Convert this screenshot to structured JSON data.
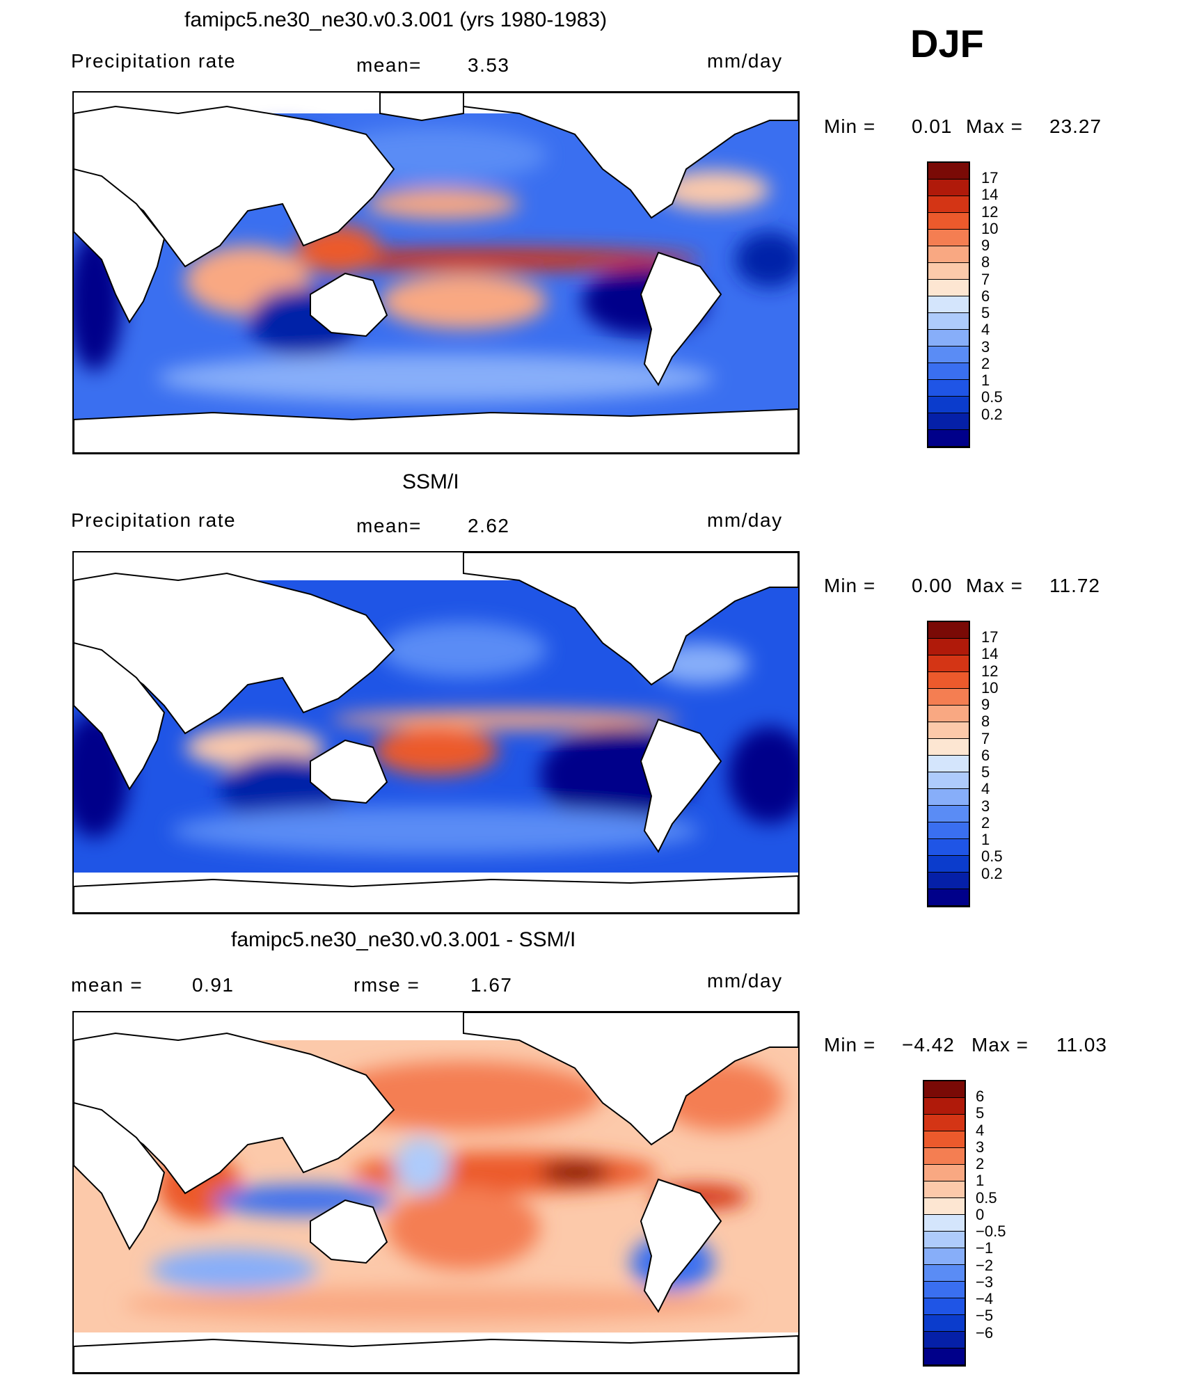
{
  "season": "DJF",
  "panels": [
    {
      "title": "famipc5.ne30_ne30.v0.3.001 (yrs 1980-1983)",
      "left_label": "Precipitation rate",
      "mid_label": "mean=",
      "mid_value": "3.53",
      "units": "mm/day",
      "min_label": "Min =",
      "min_value": "0.01",
      "max_label": "Max =",
      "max_value": "23.27"
    },
    {
      "title": "SSM/I",
      "left_label": "Precipitation rate",
      "mid_label": "mean=",
      "mid_value": "2.62",
      "units": "mm/day",
      "min_label": "Min =",
      "min_value": "0.00",
      "max_label": "Max =",
      "max_value": "11.72"
    },
    {
      "title": "famipc5.ne30_ne30.v0.3.001 - SSM/I",
      "left_label": "mean =",
      "left_value": "0.91",
      "mid_label": "rmse =",
      "mid_value": "1.67",
      "units": "mm/day",
      "min_label": "Min =",
      "min_value": "−4.42",
      "max_label": "Max =",
      "max_value": "11.03"
    }
  ],
  "chart_data": [
    {
      "type": "heatmap",
      "title": "famipc5.ne30_ne30.v0.3.001 (yrs 1980-1983)",
      "variable": "Precipitation rate",
      "units": "mm/day",
      "mean": 3.53,
      "min": 0.01,
      "max": 23.27,
      "contour_levels": [
        0.2,
        0.5,
        1,
        2,
        3,
        4,
        5,
        6,
        7,
        8,
        9,
        10,
        12,
        14,
        17
      ],
      "colorbar_colors": [
        "#00008a",
        "#0520a8",
        "#0b3ccc",
        "#1f55e6",
        "#3a6ff0",
        "#5a8cf5",
        "#87aef9",
        "#aecbfb",
        "#d4e5fc",
        "#fde6d2",
        "#fcc9aa",
        "#f9a882",
        "#f47e52",
        "#ec5a2c",
        "#d43515",
        "#b01a0a",
        "#7a0a06"
      ]
    },
    {
      "type": "heatmap",
      "title": "SSM/I",
      "variable": "Precipitation rate",
      "units": "mm/day",
      "mean": 2.62,
      "min": 0.0,
      "max": 11.72,
      "contour_levels": [
        0.2,
        0.5,
        1,
        2,
        3,
        4,
        5,
        6,
        7,
        8,
        9,
        10,
        12,
        14,
        17
      ],
      "colorbar_colors": [
        "#00008a",
        "#0520a8",
        "#0b3ccc",
        "#1f55e6",
        "#3a6ff0",
        "#5a8cf5",
        "#87aef9",
        "#aecbfb",
        "#d4e5fc",
        "#fde6d2",
        "#fcc9aa",
        "#f9a882",
        "#f47e52",
        "#ec5a2c",
        "#d43515",
        "#b01a0a",
        "#7a0a06"
      ]
    },
    {
      "type": "heatmap",
      "title": "famipc5.ne30_ne30.v0.3.001 - SSM/I",
      "units": "mm/day",
      "mean": 0.91,
      "rmse": 1.67,
      "min": -4.42,
      "max": 11.03,
      "contour_levels": [
        "−6",
        "−5",
        "−4",
        "−3",
        "−2",
        "−1",
        "−0.5",
        "0",
        "0.5",
        "1",
        "2",
        "3",
        "4",
        "5",
        "6"
      ],
      "colorbar_colors": [
        "#00008a",
        "#0520a8",
        "#0b3ccc",
        "#1f55e6",
        "#3a6ff0",
        "#5a8cf5",
        "#87aef9",
        "#aecbfb",
        "#d4e5fc",
        "#fde6d2",
        "#fcc9aa",
        "#f9a882",
        "#f47e52",
        "#ec5a2c",
        "#d43515",
        "#b01a0a",
        "#7a0a06"
      ]
    }
  ]
}
